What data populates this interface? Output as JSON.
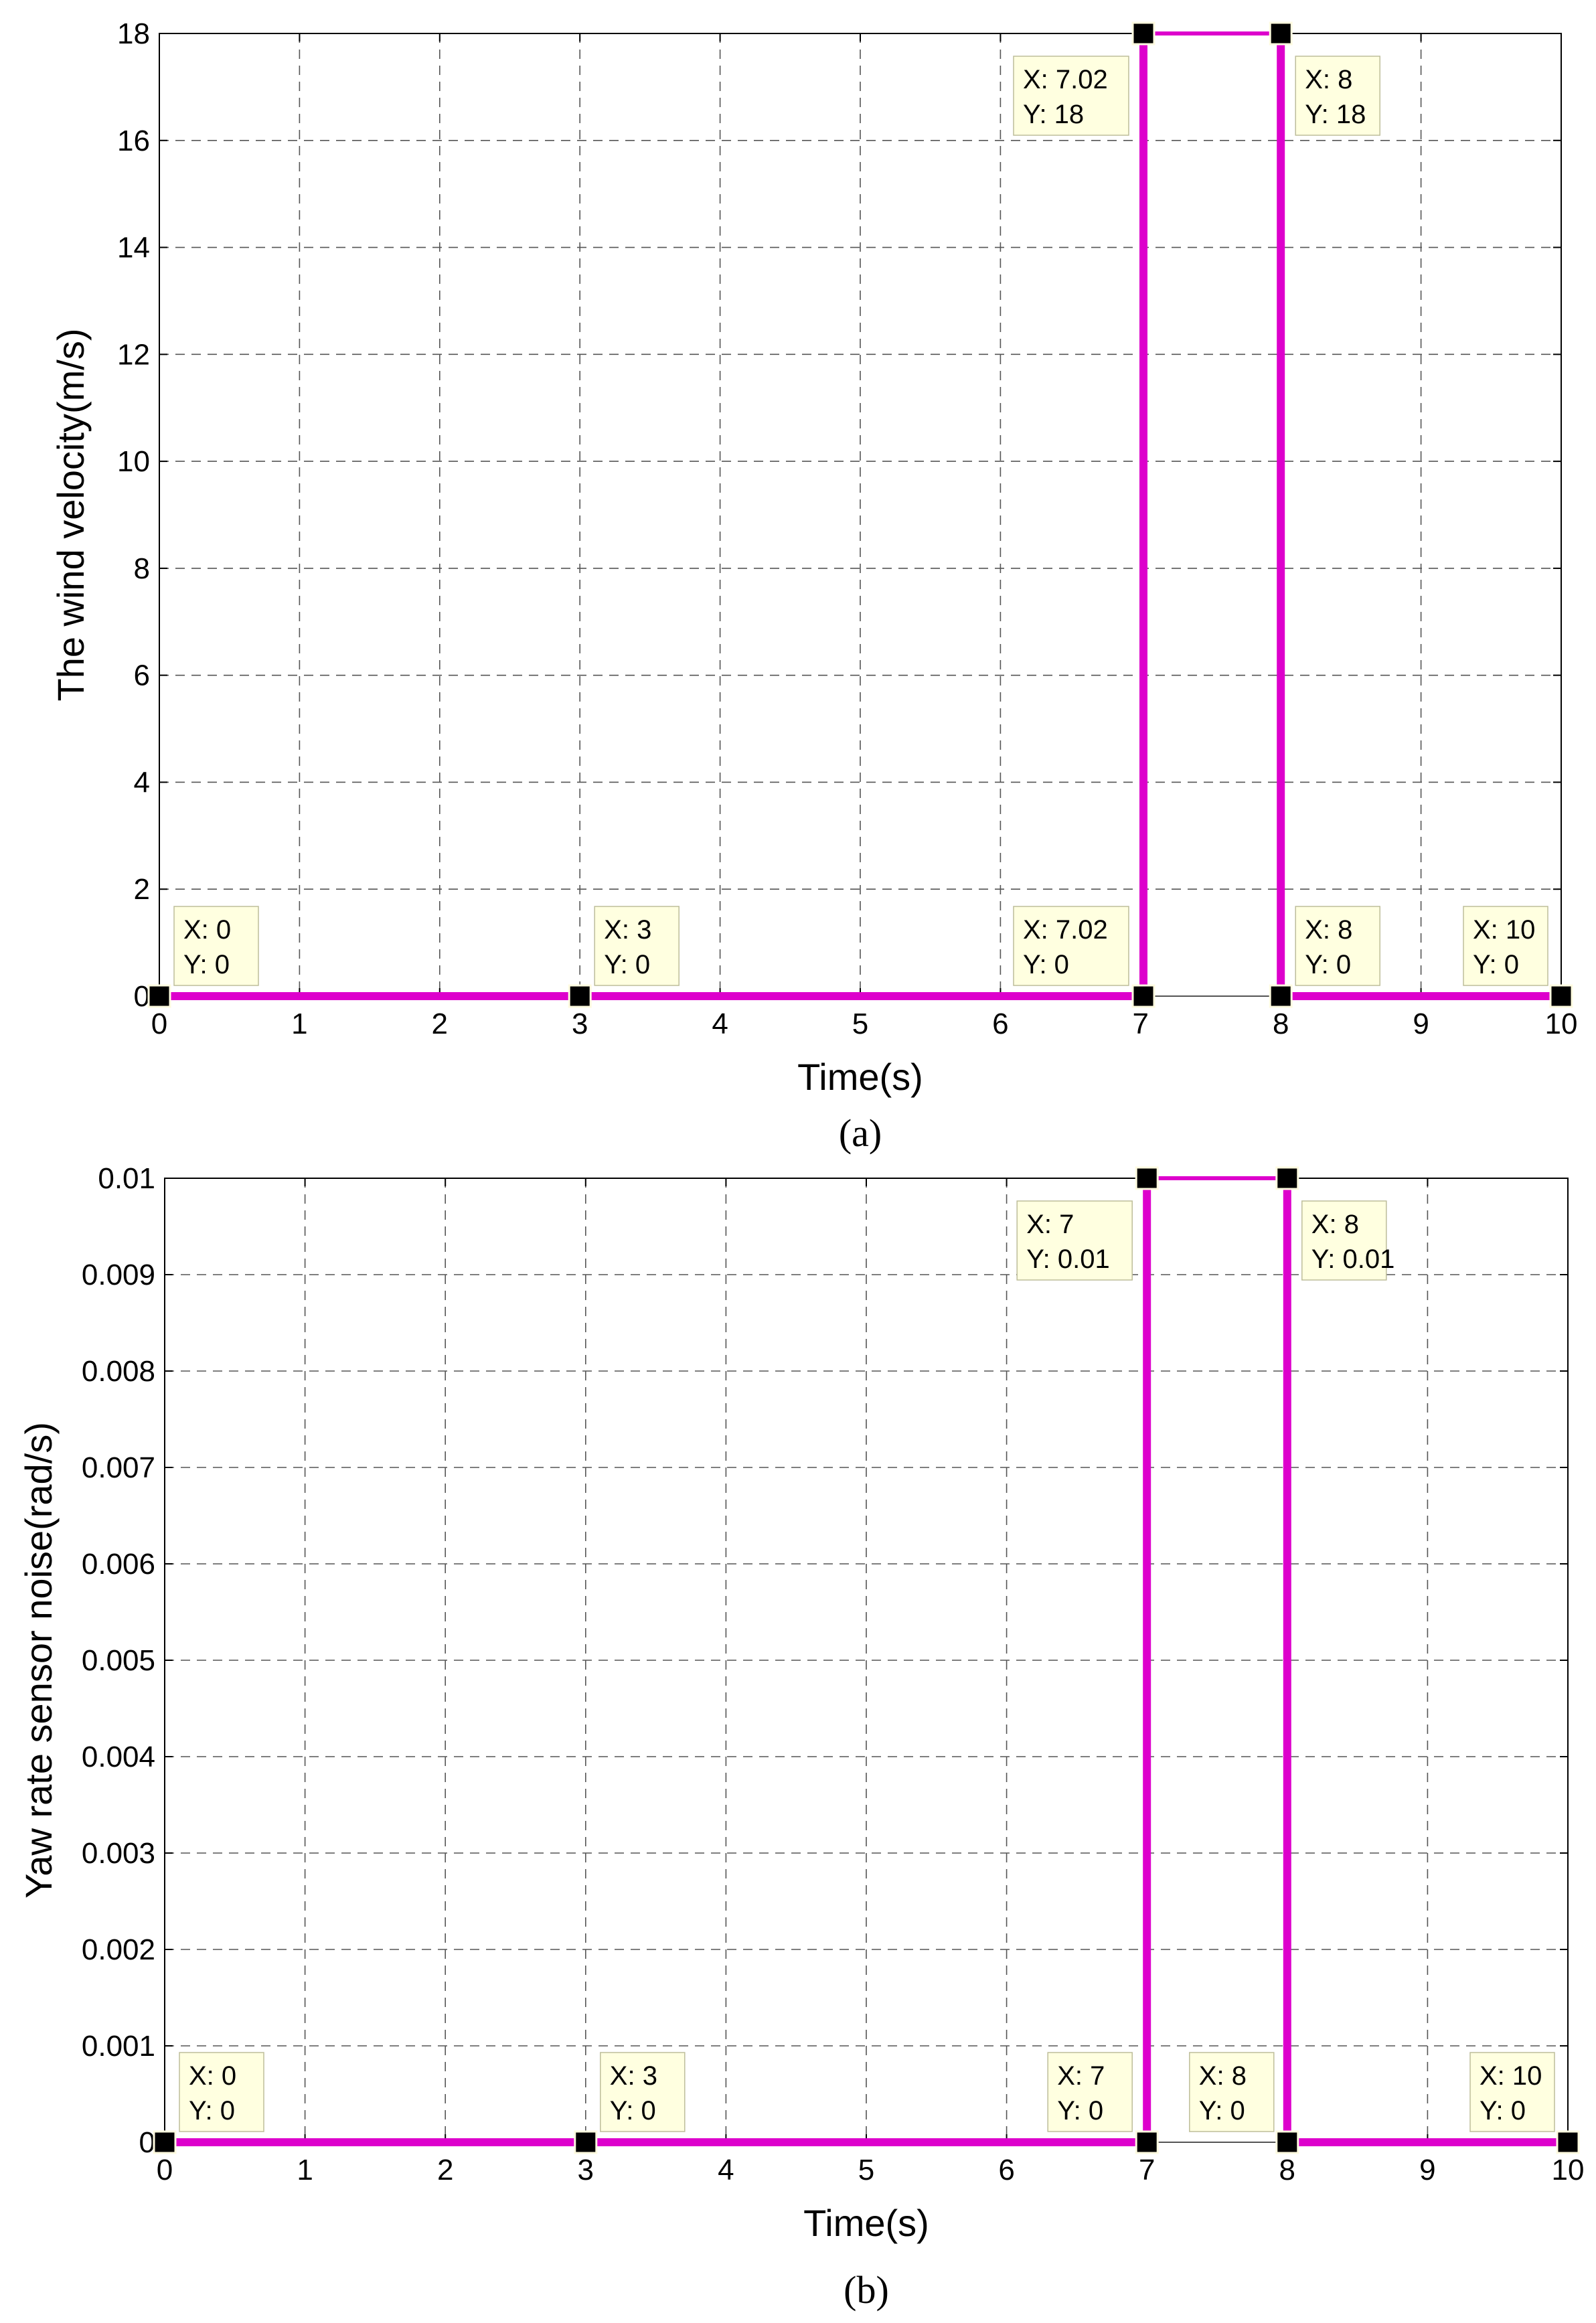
{
  "chart_data": [
    {
      "type": "line",
      "caption": "(a)",
      "xlabel": "Time(s)",
      "ylabel": "The wind velocity(m/s)",
      "xlim": [
        0,
        10
      ],
      "ylim": [
        0,
        18
      ],
      "xticks": [
        "0",
        "1",
        "2",
        "3",
        "4",
        "5",
        "6",
        "7",
        "8",
        "9",
        "10"
      ],
      "yticks": [
        "0",
        "2",
        "4",
        "6",
        "8",
        "10",
        "12",
        "14",
        "16",
        "18"
      ],
      "grid": true,
      "line_color": "#dd00cc",
      "series": [
        {
          "x": [
            0,
            3,
            7.02,
            7.02,
            8,
            8,
            10
          ],
          "y": [
            0,
            0,
            0,
            18,
            18,
            0,
            0
          ]
        }
      ],
      "annotations": [
        {
          "x": 0,
          "y": 0,
          "line1": "X: 0",
          "line2": "Y: 0"
        },
        {
          "x": 3,
          "y": 0,
          "line1": "X: 3",
          "line2": "Y: 0"
        },
        {
          "x": 7.02,
          "y": 0,
          "line1": "X: 7.02",
          "line2": "Y: 0"
        },
        {
          "x": 8,
          "y": 0,
          "line1": "X: 8",
          "line2": "Y: 0"
        },
        {
          "x": 10,
          "y": 0,
          "line1": "X: 10",
          "line2": "Y: 0"
        },
        {
          "x": 7.02,
          "y": 18,
          "line1": "X: 7.02",
          "line2": "Y: 18"
        },
        {
          "x": 8,
          "y": 18,
          "line1": "X: 8",
          "line2": "Y: 18"
        }
      ]
    },
    {
      "type": "line",
      "caption": "(b)",
      "xlabel": "Time(s)",
      "ylabel": "Yaw rate sensor noise(rad/s)",
      "xlim": [
        0,
        10
      ],
      "ylim": [
        0,
        0.01
      ],
      "xticks": [
        "0",
        "1",
        "2",
        "3",
        "4",
        "5",
        "6",
        "7",
        "8",
        "9",
        "10"
      ],
      "yticks": [
        "0",
        "0.001",
        "0.002",
        "0.003",
        "0.004",
        "0.005",
        "0.006",
        "0.007",
        "0.008",
        "0.009",
        "0.01"
      ],
      "grid": true,
      "line_color": "#dd00cc",
      "series": [
        {
          "x": [
            0,
            3,
            7,
            7,
            8,
            8,
            10
          ],
          "y": [
            0,
            0,
            0,
            0.01,
            0.01,
            0,
            0
          ]
        }
      ],
      "annotations": [
        {
          "x": 0,
          "y": 0,
          "line1": "X: 0",
          "line2": "Y: 0"
        },
        {
          "x": 3,
          "y": 0,
          "line1": "X: 3",
          "line2": "Y: 0"
        },
        {
          "x": 7,
          "y": 0,
          "line1": "X: 7",
          "line2": "Y: 0"
        },
        {
          "x": 8,
          "y": 0,
          "line1": "X: 8",
          "line2": "Y: 0"
        },
        {
          "x": 10,
          "y": 0,
          "line1": "X: 10",
          "line2": "Y: 0"
        },
        {
          "x": 7,
          "y": 0.01,
          "line1": "X: 7",
          "line2": "Y: 0.01"
        },
        {
          "x": 8,
          "y": 0.01,
          "line1": "X: 8",
          "line2": "Y: 0.01"
        }
      ]
    }
  ]
}
